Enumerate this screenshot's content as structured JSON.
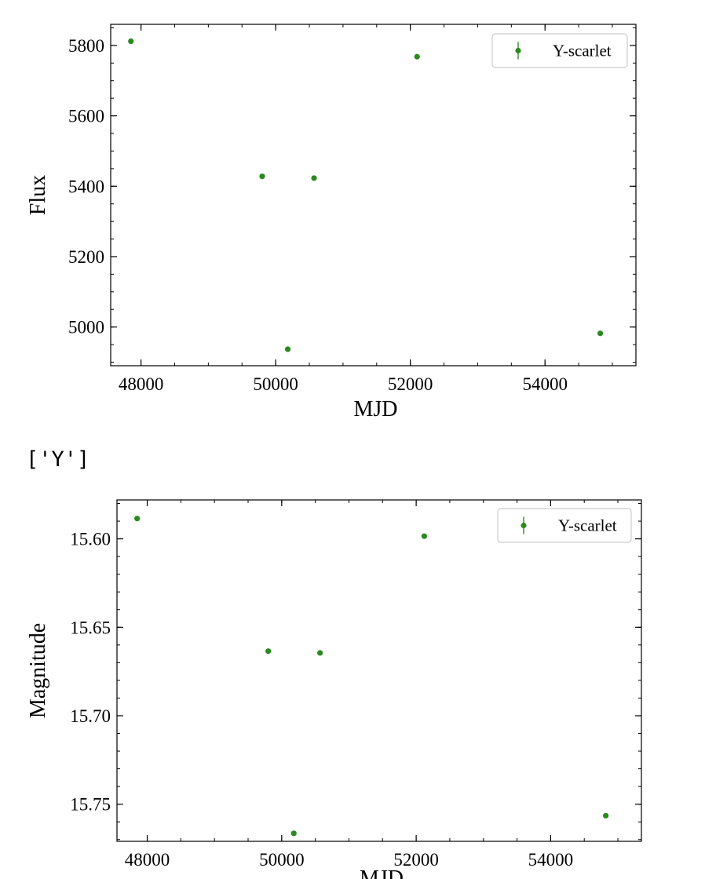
{
  "output_text": "['Y']",
  "colors": {
    "marker": "#2a8a1f",
    "axis": "#000000",
    "legend_border": "#cccccc"
  },
  "chart_data": [
    {
      "type": "scatter",
      "title": "",
      "xlabel": "MJD",
      "ylabel": "Flux",
      "xlim": [
        47550,
        55350
      ],
      "ylim": [
        4890,
        5860
      ],
      "xticks": [
        48000,
        50000,
        52000,
        54000
      ],
      "xtick_labels": [
        "48000",
        "50000",
        "52000",
        "54000"
      ],
      "yticks": [
        5000,
        5200,
        5400,
        5600,
        5800
      ],
      "ytick_labels": [
        "5000",
        "5200",
        "5400",
        "5600",
        "5800"
      ],
      "x_minor_step": 500,
      "y_minor_step": 50,
      "y_inverted": false,
      "legend": {
        "position": "top-right",
        "entries": [
          "Y-scarlet"
        ]
      },
      "series": [
        {
          "name": "Y-scarlet",
          "x": [
            47850,
            49800,
            50180,
            50570,
            52100,
            54820
          ],
          "y": [
            5812,
            5428,
            4937,
            5423,
            5768,
            4982
          ]
        }
      ]
    },
    {
      "type": "scatter",
      "title": "",
      "xlabel": "MJD",
      "ylabel": "Magnitude",
      "xlim": [
        47550,
        55350
      ],
      "ylim": [
        15.771,
        15.578
      ],
      "xticks": [
        48000,
        50000,
        52000,
        54000
      ],
      "xtick_labels": [
        "48000",
        "50000",
        "52000",
        "54000"
      ],
      "yticks": [
        15.6,
        15.65,
        15.7,
        15.75
      ],
      "ytick_labels": [
        "15.60",
        "15.65",
        "15.70",
        "15.75"
      ],
      "x_minor_step": 500,
      "y_minor_step": 0.01,
      "y_inverted": true,
      "legend": {
        "position": "top-right",
        "entries": [
          "Y-scarlet"
        ]
      },
      "series": [
        {
          "name": "Y-scarlet",
          "x": [
            47850,
            49800,
            50180,
            50570,
            52120,
            54820
          ],
          "y": [
            15.5885,
            15.6635,
            15.7665,
            15.6645,
            15.5985,
            15.7565
          ]
        }
      ]
    }
  ]
}
